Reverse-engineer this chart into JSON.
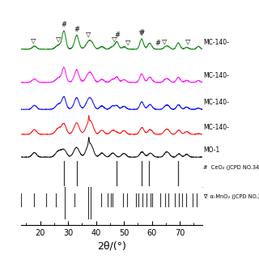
{
  "xlabel": "2θ/(°)",
  "xlim": [
    13,
    78
  ],
  "curve_labels": [
    "MO-1",
    "MC-140-",
    "MC-140-",
    "MC-140-",
    "MC-140-"
  ],
  "curve_colors": [
    "black",
    "red",
    "blue",
    "magenta",
    "green"
  ],
  "curve_offsets": [
    0.0,
    0.55,
    1.15,
    1.8,
    2.6
  ],
  "background_color": "#ffffff",
  "ceo2_ref_peaks": [
    28.5,
    33.1,
    47.5,
    56.3,
    59.1,
    69.4
  ],
  "mno2_ref_peaks": [
    13.2,
    17.9,
    22.2,
    25.7,
    28.7,
    32.3,
    37.3,
    38.2,
    41.9,
    44.2,
    45.2,
    46.0,
    49.8,
    51.0,
    54.2,
    55.2,
    56.7,
    58.2,
    59.4,
    60.1,
    63.1,
    64.9,
    65.8,
    68.3,
    69.6,
    71.0,
    72.4,
    74.5,
    76.1
  ],
  "nabla_positions_on_green": [
    17.5,
    26.5,
    37.4,
    46.5,
    51.5,
    56.3,
    64.5,
    73.0
  ],
  "hash_positions_on_green": [
    28.5,
    33.0,
    47.5,
    56.3,
    62.0
  ],
  "label_fontsize": 5.5,
  "marker_fontsize": 6.0,
  "ref_label_fontsize": 4.8,
  "tick_fontsize": 7,
  "xlabel_fontsize": 9
}
